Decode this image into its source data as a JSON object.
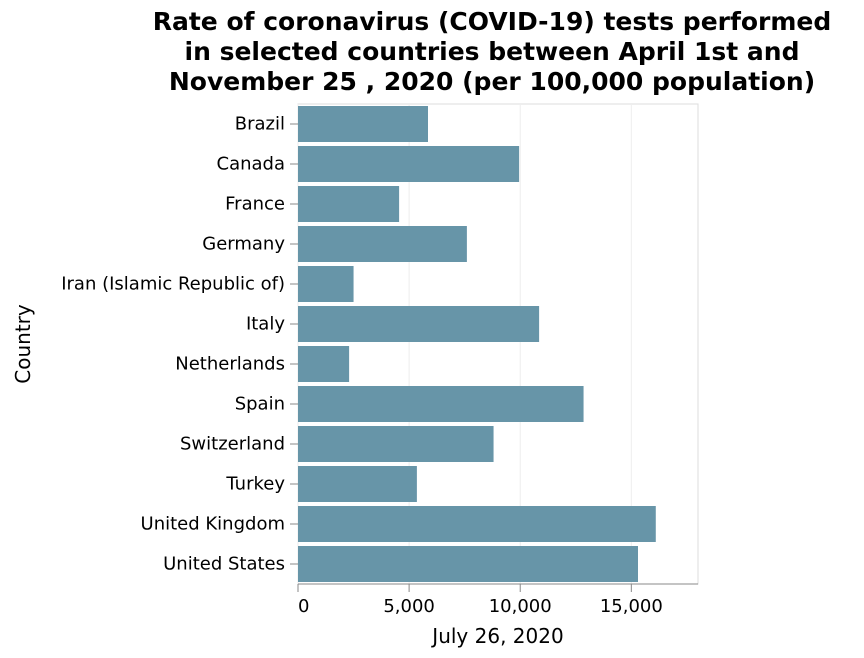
{
  "chart_data": {
    "type": "bar",
    "orientation": "horizontal",
    "title": [
      "Rate of coronavirus (COVID-19) tests performed",
      "in selected countries between April 1st and",
      "November 25 , 2020 (per 100,000 population)"
    ],
    "xlabel": "July 26, 2020",
    "ylabel": "Country",
    "categories": [
      "Brazil",
      "Canada",
      "France",
      "Germany",
      "Iran (Islamic Republic of)",
      "Italy",
      "Netherlands",
      "Spain",
      "Switzerland",
      "Turkey",
      "United Kingdom",
      "United States"
    ],
    "values": [
      5850,
      9950,
      4550,
      7600,
      2500,
      10850,
      2300,
      12850,
      8800,
      5350,
      16100,
      15300
    ],
    "xlim": [
      0,
      18000
    ],
    "xticks": [
      0,
      5000,
      10000,
      15000
    ],
    "xtick_labels": [
      "0",
      "5,000",
      "10,000",
      "15,000"
    ],
    "grid": "vertical",
    "bar_color": "#6795a8"
  }
}
